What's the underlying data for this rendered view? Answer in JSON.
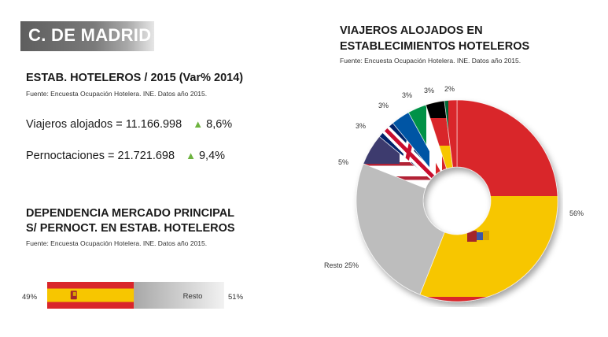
{
  "region_title": "C. DE MADRID",
  "stats": {
    "title": "ESTAB. HOTELEROS / 2015 (Var% 2014)",
    "source": "Fuente: Encuesta Ocupación Hotelera. INE. Datos año 2015.",
    "viajeros": {
      "label": "Viajeros alojados = 11.166.998",
      "var": "8,6%"
    },
    "pernoct": {
      "label": "Pernoctaciones =  21.721.698",
      "var": "9,4%"
    },
    "up_color": "#6db33f"
  },
  "dependencia": {
    "title_line1": "DEPENDENCIA MERCADO PRINCIPAL",
    "title_line2": "S/ PERNOCT. EN ESTAB. HOTELEROS",
    "source": "Fuente: Encuesta Ocupación Hotelera. INE. Datos año 2015.",
    "chart_data": {
      "type": "bar",
      "categories": [
        "España",
        "Resto"
      ],
      "values": [
        49,
        51
      ],
      "labels": [
        "49%",
        "Resto",
        "51%"
      ]
    }
  },
  "viajeros_chart": {
    "title_line1": "VIAJEROS ALOJADOS EN",
    "title_line2": "ESTABLECIMIENTOS HOTELEROS",
    "source": "Fuente: Encuesta Ocupación Hotelera. INE. Datos año 2015.",
    "chart_data": {
      "type": "pie",
      "donut": true,
      "slices": [
        {
          "label": "56%",
          "value": 56,
          "flag": "Spain"
        },
        {
          "label": "Resto 25%",
          "value": 25,
          "flag": "none"
        },
        {
          "label": "5%",
          "value": 5,
          "flag": "USA"
        },
        {
          "label": "3%",
          "value": 3,
          "flag": "UK"
        },
        {
          "label": "3%",
          "value": 3,
          "flag": "France"
        },
        {
          "label": "3%",
          "value": 3,
          "flag": "Italy"
        },
        {
          "label": "3%",
          "value": 3,
          "flag": "Germany"
        },
        {
          "label": "2%",
          "value": 2,
          "flag": "Portugal"
        }
      ]
    },
    "colors": {
      "spain_red": "#d9262b",
      "spain_yellow": "#f7c600",
      "resto_grey": "#bdbdbd",
      "usa_blue": "#3c3b6e",
      "usa_red": "#b22234",
      "uk_blue": "#012169",
      "uk_red": "#c8102e",
      "france_blue": "#0055a4",
      "italy_green": "#009246",
      "germany_black": "#000000",
      "portugal_green": "#046a38"
    }
  }
}
